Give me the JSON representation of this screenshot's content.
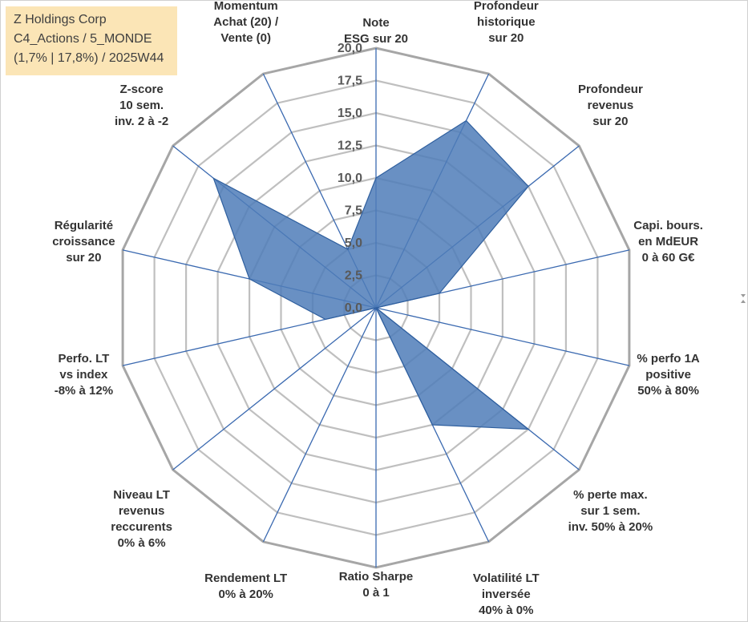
{
  "title": {
    "line1": "Z Holdings Corp",
    "line2": "C4_Actions / 5_MONDE",
    "line3": "(1,7% | 17,8%) / 2025W44"
  },
  "chart_data": {
    "type": "radar",
    "rlim": [
      0,
      20
    ],
    "ticks": [
      "0,0",
      "2,5",
      "5,0",
      "7,5",
      "10,0",
      "12,5",
      "15,0",
      "17,5",
      "20,0"
    ],
    "tick_values": [
      0,
      2.5,
      5,
      7.5,
      10,
      12.5,
      15,
      17.5,
      20
    ],
    "grid": true,
    "colors": {
      "fill": "#4f7db8",
      "stroke": "#2f5f9e",
      "spoke": "#3a69b0",
      "ring": "#bfbfbf",
      "ring_outer": "#a6a6a6"
    },
    "axes": [
      {
        "label": [
          "Note",
          "ESG sur 20"
        ],
        "value": 10
      },
      {
        "label": [
          "Profondeur",
          "historique",
          "sur 20"
        ],
        "value": 16
      },
      {
        "label": [
          "Profondeur",
          "revenus",
          "sur 20"
        ],
        "value": 15
      },
      {
        "label": [
          "Capi. bours.",
          "en MdEUR",
          "0 à 60 G€"
        ],
        "value": 5
      },
      {
        "label": [
          "% perfo 1A",
          "positive",
          "50% à 80%"
        ],
        "value": 0
      },
      {
        "label": [
          "% perte max.",
          "sur 1 sem.",
          "inv. 50% à 20%"
        ],
        "value": 15
      },
      {
        "label": [
          "Volatilité LT",
          "inversée",
          "40% à 0%"
        ],
        "value": 10
      },
      {
        "label": [
          "Ratio Sharpe",
          "0 à 1"
        ],
        "value": 0
      },
      {
        "label": [
          "Rendement LT",
          "0% à 20%"
        ],
        "value": 0
      },
      {
        "label": [
          "Niveau LT",
          "revenus",
          "reccurents",
          "0% à 6%"
        ],
        "value": 0
      },
      {
        "label": [
          "Perfo. LT",
          "vs index",
          "-8% à 12%"
        ],
        "value": 4
      },
      {
        "label": [
          "Régularité",
          "croissance",
          "sur 20"
        ],
        "value": 10
      },
      {
        "label": [
          "Z-score",
          "10 sem.",
          "inv. 2 à -2"
        ],
        "value": 16
      },
      {
        "label": [
          "Momentum",
          "Achat (20) /",
          "Vente (0)"
        ],
        "value": 5
      }
    ]
  }
}
